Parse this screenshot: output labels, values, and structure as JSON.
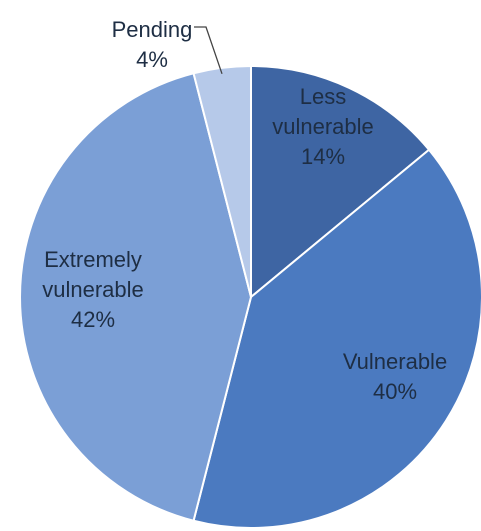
{
  "chart_data": {
    "type": "pie",
    "title": "",
    "slices": [
      {
        "name": "Less vulnerable",
        "label_lines": [
          "Less",
          "vulnerable"
        ],
        "value": 14,
        "value_label": "14%",
        "color": "#3e65a3"
      },
      {
        "name": "Vulnerable",
        "label_lines": [
          "Vulnerable"
        ],
        "value": 40,
        "value_label": "40%",
        "color": "#4b7ac0"
      },
      {
        "name": "Extremely vulnerable",
        "label_lines": [
          "Extremely",
          "vulnerable"
        ],
        "value": 42,
        "value_label": "42%",
        "color": "#7b9fd6"
      },
      {
        "name": "Pending",
        "label_lines": [
          "Pending"
        ],
        "value": 4,
        "value_label": "4%",
        "color": "#b6c9e9"
      }
    ],
    "start_angle_deg": 0,
    "direction": "clockwise",
    "labels_inside": [
      "Less vulnerable",
      "Vulnerable",
      "Extremely vulnerable"
    ],
    "labels_outside_with_leader": [
      "Pending"
    ],
    "legend": "none",
    "grid": false
  }
}
